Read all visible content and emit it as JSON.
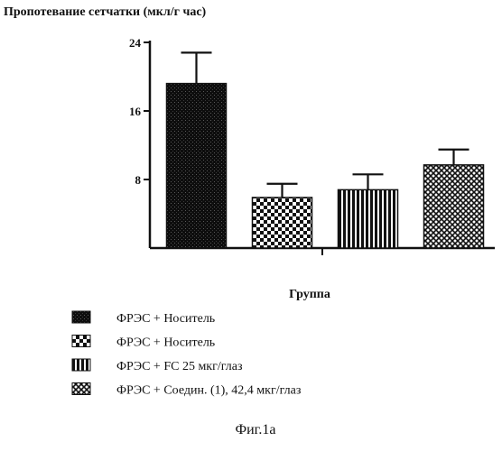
{
  "chart_data": {
    "type": "bar",
    "ylabel": "Пропотевание сетчатки (мкл/г час)",
    "xlabel": "Группа",
    "ylim": [
      0,
      24
    ],
    "yticks": [
      8,
      16,
      24
    ],
    "series": [
      {
        "name": "ФРЭС + Носитель",
        "value": 19.2,
        "error": 3.6,
        "pattern": "dense-dark"
      },
      {
        "name": "ФРЭС + Носитель",
        "value": 5.9,
        "error": 1.6,
        "pattern": "checker"
      },
      {
        "name": "ФРЭС + FC 25 мкг/глаз",
        "value": 6.8,
        "error": 1.8,
        "pattern": "vertical-stripes"
      },
      {
        "name": "ФРЭС + Соедин. (1), 42,4 мкг/глаз",
        "value": 9.7,
        "error": 1.8,
        "pattern": "crosshatch"
      }
    ],
    "grid": false,
    "legend_position": "bottom"
  },
  "caption": "Фиг.1а"
}
